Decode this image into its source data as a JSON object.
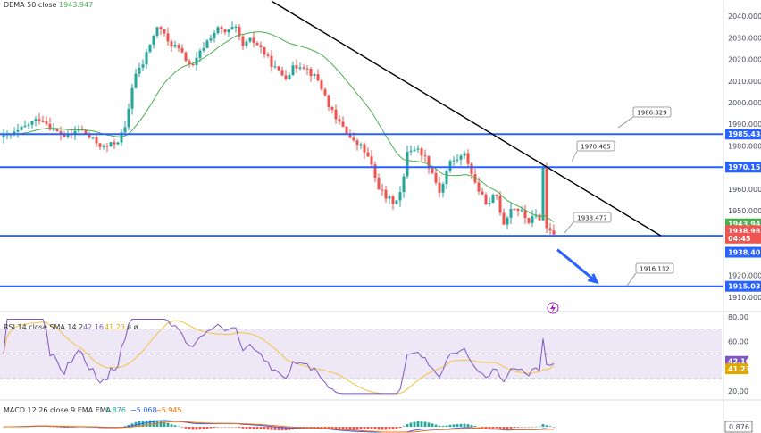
{
  "colors": {
    "bull": "#26a69a",
    "bear": "#ef5350",
    "dema": "#4caf50",
    "hline": "#2962ff",
    "trend": "#000000",
    "rsi": "#7e57c2",
    "rsi_sma": "#f5c242",
    "macd": "#2962ff",
    "signal": "#ff6d00"
  },
  "legend": {
    "dema_label": "DEMA 50 close",
    "dema_value": "1943.947",
    "rsi_label": "RSI 14 close SMA 14 2",
    "rsi_value": "42.16",
    "rsi_sma_value": "41.23",
    "rsi_extra": "ø ø",
    "macd_label": "MACD 12 26 close 9 EMA EMA",
    "macd_value": "0.876",
    "macd_line_value": "−5.068",
    "macd_signal_value": "−5.945"
  },
  "price_axis": {
    "ticks": [
      "2040.000",
      "2030.000",
      "2020.000",
      "2010.000",
      "2000.000",
      "1990.000",
      "1980.000",
      "1970.000",
      "1960.000",
      "1950.000",
      "1940.000",
      "1930.000",
      "1920.000",
      "1910.000"
    ],
    "tags": [
      {
        "text": "1985.434",
        "type": "line"
      },
      {
        "text": "1970.155",
        "type": "line"
      },
      {
        "text": "1943.947",
        "type": "dema"
      },
      {
        "text": "1938.985",
        "type": "last"
      },
      {
        "text": "04:45",
        "type": "countdown"
      },
      {
        "text": "1938.403",
        "type": "line"
      },
      {
        "text": "1915.039",
        "type": "line"
      }
    ]
  },
  "rsi_axis": {
    "ticks": [
      "80.00",
      "60.00",
      "40.00",
      "20.00"
    ],
    "tags": [
      "42.16",
      "41.23"
    ]
  },
  "macd_axis": {
    "tags": [
      "0.876"
    ]
  },
  "callouts": [
    "1986.329",
    "1970.465",
    "1938.477",
    "1916.112"
  ],
  "chart_data": [
    {
      "type": "candlestick",
      "title": "",
      "ylim": [
        1905,
        2045
      ],
      "horizontal_levels": [
        1985.434,
        1970.155,
        1938.403,
        1915.039
      ],
      "trendline": {
        "from": {
          "bar": 75,
          "y": 2047
        },
        "to": {
          "bar": 184,
          "y": 1938.4
        }
      },
      "projection_arrow": {
        "from": {
          "bar": 155,
          "y": 1932
        },
        "to": {
          "bar": 166,
          "y": 1917
        }
      },
      "candles": [],
      "dema_50": []
    },
    {
      "type": "line",
      "title": "RSI 14 close SMA 14 2",
      "ylim": [
        15,
        82
      ],
      "bands": [
        30,
        50,
        70
      ],
      "last_rsi": 42.16,
      "last_sma": 41.23
    },
    {
      "type": "bar",
      "title": "MACD 12 26 close 9 EMA EMA",
      "last_histogram": 0.876,
      "last_macd": -5.068,
      "last_signal": -5.945
    }
  ]
}
